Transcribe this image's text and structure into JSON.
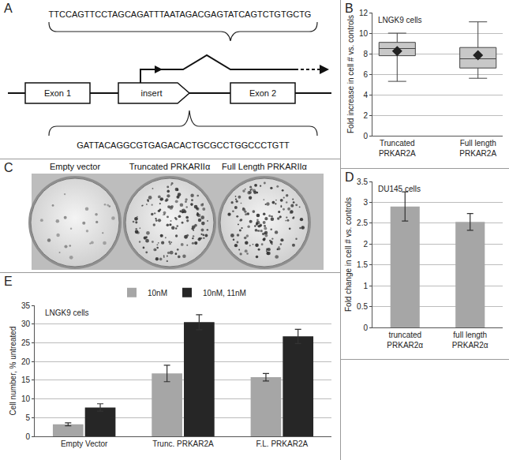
{
  "diagram": {
    "panel_label": "A",
    "top_sequence": "TTCCAGTTCCTAGCAGATTTAATAGACGAGTATCAGTCTGTGCTG",
    "bottom_sequence": "GATTACAGGCGTGAGACACTGCGCCTGGCCCTGTT",
    "boxes": [
      "Exon 1",
      "insert",
      "Exon 2"
    ]
  },
  "photo": {
    "panel_label": "C",
    "wells": [
      "Empty vector",
      "Truncated PRKARIIα",
      "Full Length PRKARIIα"
    ]
  },
  "chart_data": [
    {
      "panel_label": "B",
      "type": "box",
      "annotations": [
        "LNGK9 cells"
      ],
      "y_label": "Fold increase in cell # vs. controls",
      "categories": [
        "Truncated PRKAR2A",
        "Full length PRKAR2A"
      ],
      "boxes": [
        {
          "min": 5.3,
          "q1": 7.8,
          "median": 8.5,
          "q3": 9.1,
          "max": 10.0,
          "mean": 8.25
        },
        {
          "min": 5.6,
          "q1": 6.6,
          "median": 7.5,
          "q3": 8.6,
          "max": 11.1,
          "mean": 7.85
        }
      ],
      "color": "#c8c8c8",
      "marker": "diamond",
      "ylim": [
        0,
        12
      ],
      "yticks": [
        0,
        2,
        4,
        6,
        8,
        10,
        12
      ],
      "grid": true
    },
    {
      "panel_label": "D",
      "type": "bar",
      "annotations": [
        "DU145 cells"
      ],
      "y_label": "Fold change in cell # vs. controls",
      "categories": [
        "truncated PRKAR2α",
        "full length PRKAR2α"
      ],
      "values": [
        2.9,
        2.53
      ],
      "errors": [
        0.35,
        0.2
      ],
      "color": "#a6a6a6",
      "ylim": [
        0,
        3.5
      ],
      "yticks": [
        0,
        0.5,
        1,
        1.5,
        2,
        2.5,
        3,
        3.5
      ],
      "grid": true
    },
    {
      "panel_label": "E",
      "type": "bar",
      "annotations": [
        "LNGK9 cells"
      ],
      "y_label": "Cell number, % untreated",
      "categories": [
        "Empty Vector",
        "Trunc. PRKAR2A",
        "F.L. PRKAR2A"
      ],
      "series": [
        {
          "name": "10nM",
          "color": "#a6a6a6",
          "values": [
            3.2,
            16.8,
            15.8
          ],
          "errors": [
            0.4,
            2.2,
            1.0
          ]
        },
        {
          "name": "10nM, 11nM",
          "color": "#262626",
          "values": [
            7.7,
            30.5,
            26.7
          ],
          "errors": [
            1.0,
            2.0,
            1.9
          ]
        }
      ],
      "ylim": [
        0,
        35
      ],
      "yticks": [
        0,
        5,
        10,
        15,
        20,
        25,
        30,
        35
      ],
      "grid": true,
      "legend": "top"
    }
  ]
}
